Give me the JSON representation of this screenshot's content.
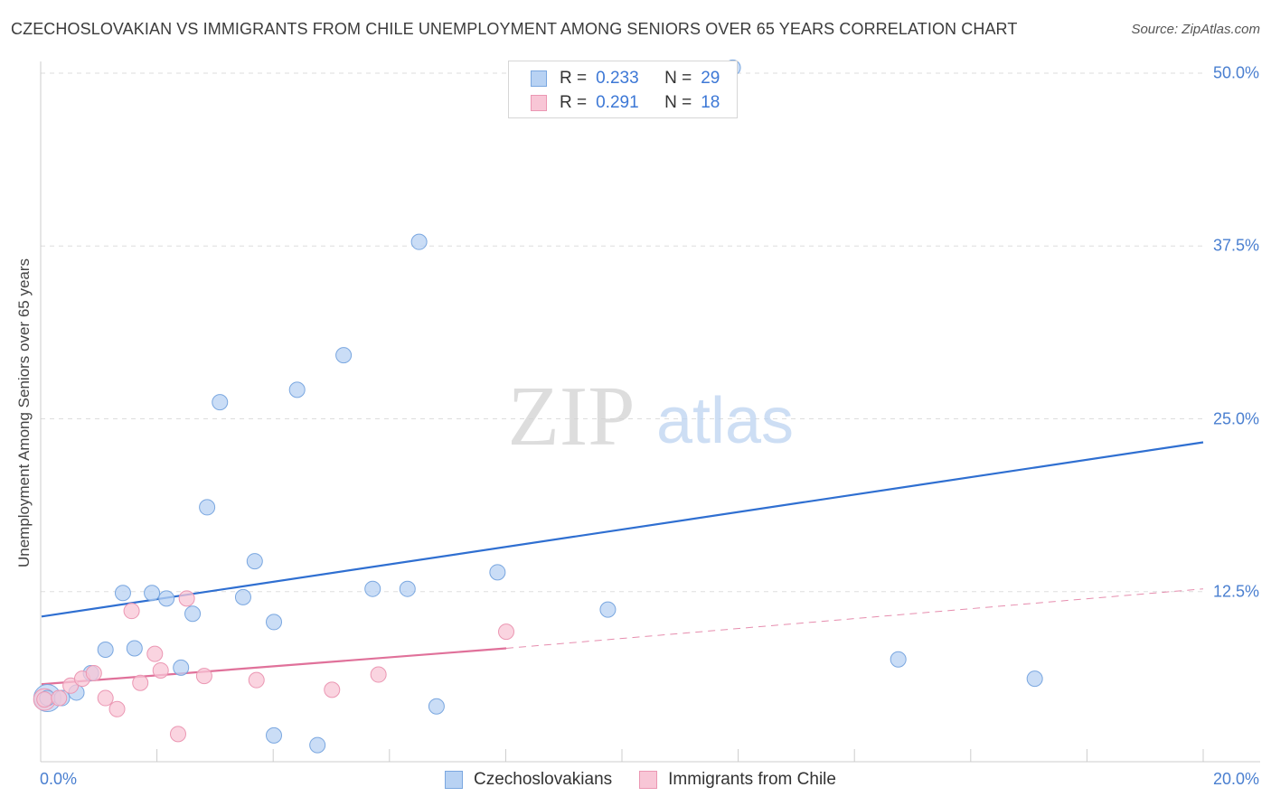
{
  "title": "CZECHOSLOVAKIAN VS IMMIGRANTS FROM CHILE UNEMPLOYMENT AMONG SENIORS OVER 65 YEARS CORRELATION CHART",
  "source": "Source: ZipAtlas.com",
  "watermark": {
    "zip": "ZIP",
    "atlas": "atlas"
  },
  "legend": {
    "series1": {
      "r_label": "R =",
      "r_value": "0.233",
      "n_label": "N =",
      "n_value": "29"
    },
    "series2": {
      "r_label": "R =",
      "r_value": "0.291",
      "n_label": "N =",
      "n_value": "18"
    }
  },
  "bottom_legend": {
    "series1": "Czechoslovakians",
    "series2": "Immigrants from Chile"
  },
  "colors": {
    "blue_fill": "#b8d2f3",
    "blue_stroke": "#7aa7e0",
    "blue_line": "#2f6fd1",
    "pink_fill": "#f8c6d6",
    "pink_stroke": "#eb97b3",
    "pink_line": "#e0719a",
    "grid": "#dddddd",
    "tick_text": "#4a7fd0"
  },
  "chart_data": {
    "type": "scatter",
    "title": "CZECHOSLOVAKIAN VS IMMIGRANTS FROM CHILE UNEMPLOYMENT AMONG SENIORS OVER 65 YEARS CORRELATION CHART",
    "xlabel": "",
    "ylabel": "Unemployment Among Seniors over 65 years",
    "xlim": [
      0,
      20
    ],
    "ylim": [
      0,
      50
    ],
    "x_tick_labels": [
      "0.0%",
      "20.0%"
    ],
    "y_ticks": [
      12.5,
      25,
      37.5,
      50
    ],
    "y_tick_labels": [
      "12.5%",
      "25.0%",
      "37.5%",
      "50.0%"
    ],
    "series": [
      {
        "name": "Czechoslovakians",
        "R": 0.233,
        "N": 29,
        "points": [
          [
            0.1,
            4.8
          ],
          [
            0.35,
            4.8
          ],
          [
            0.6,
            5.2
          ],
          [
            0.85,
            6.6
          ],
          [
            1.1,
            8.3
          ],
          [
            1.4,
            12.4
          ],
          [
            1.6,
            8.4
          ],
          [
            1.9,
            12.4
          ],
          [
            2.15,
            12.0
          ],
          [
            2.4,
            7.0
          ],
          [
            2.6,
            10.9
          ],
          [
            2.85,
            18.6
          ],
          [
            3.07,
            26.2
          ],
          [
            3.47,
            12.1
          ],
          [
            3.67,
            14.7
          ],
          [
            4.0,
            10.3
          ],
          [
            4.0,
            2.1
          ],
          [
            4.4,
            27.1
          ],
          [
            4.75,
            1.4
          ],
          [
            5.2,
            29.6
          ],
          [
            5.7,
            12.7
          ],
          [
            6.3,
            12.7
          ],
          [
            6.5,
            37.8
          ],
          [
            6.8,
            4.2
          ],
          [
            7.85,
            13.9
          ],
          [
            9.75,
            11.2
          ],
          [
            11.9,
            50.4
          ],
          [
            14.75,
            7.6
          ],
          [
            17.1,
            6.2
          ]
        ],
        "trend": {
          "x": [
            0,
            20
          ],
          "y": [
            10.7,
            23.3
          ]
        }
      },
      {
        "name": "Immigrants from Chile",
        "R": 0.291,
        "N": 18,
        "points": [
          [
            0.05,
            4.7
          ],
          [
            0.3,
            4.8
          ],
          [
            0.5,
            5.7
          ],
          [
            0.7,
            6.2
          ],
          [
            0.9,
            6.6
          ],
          [
            1.1,
            4.8
          ],
          [
            1.3,
            4.0
          ],
          [
            1.55,
            11.1
          ],
          [
            1.7,
            5.9
          ],
          [
            1.95,
            8.0
          ],
          [
            2.05,
            6.8
          ],
          [
            2.35,
            2.2
          ],
          [
            2.5,
            12.0
          ],
          [
            2.8,
            6.4
          ],
          [
            3.7,
            6.1
          ],
          [
            5.0,
            5.4
          ],
          [
            5.8,
            6.5
          ],
          [
            8.0,
            9.6
          ]
        ],
        "trend": {
          "x": [
            0,
            8
          ],
          "y": [
            5.8,
            8.4
          ]
        },
        "trend_extension": {
          "x": [
            8,
            20
          ],
          "y": [
            8.4,
            12.7
          ]
        }
      }
    ]
  }
}
